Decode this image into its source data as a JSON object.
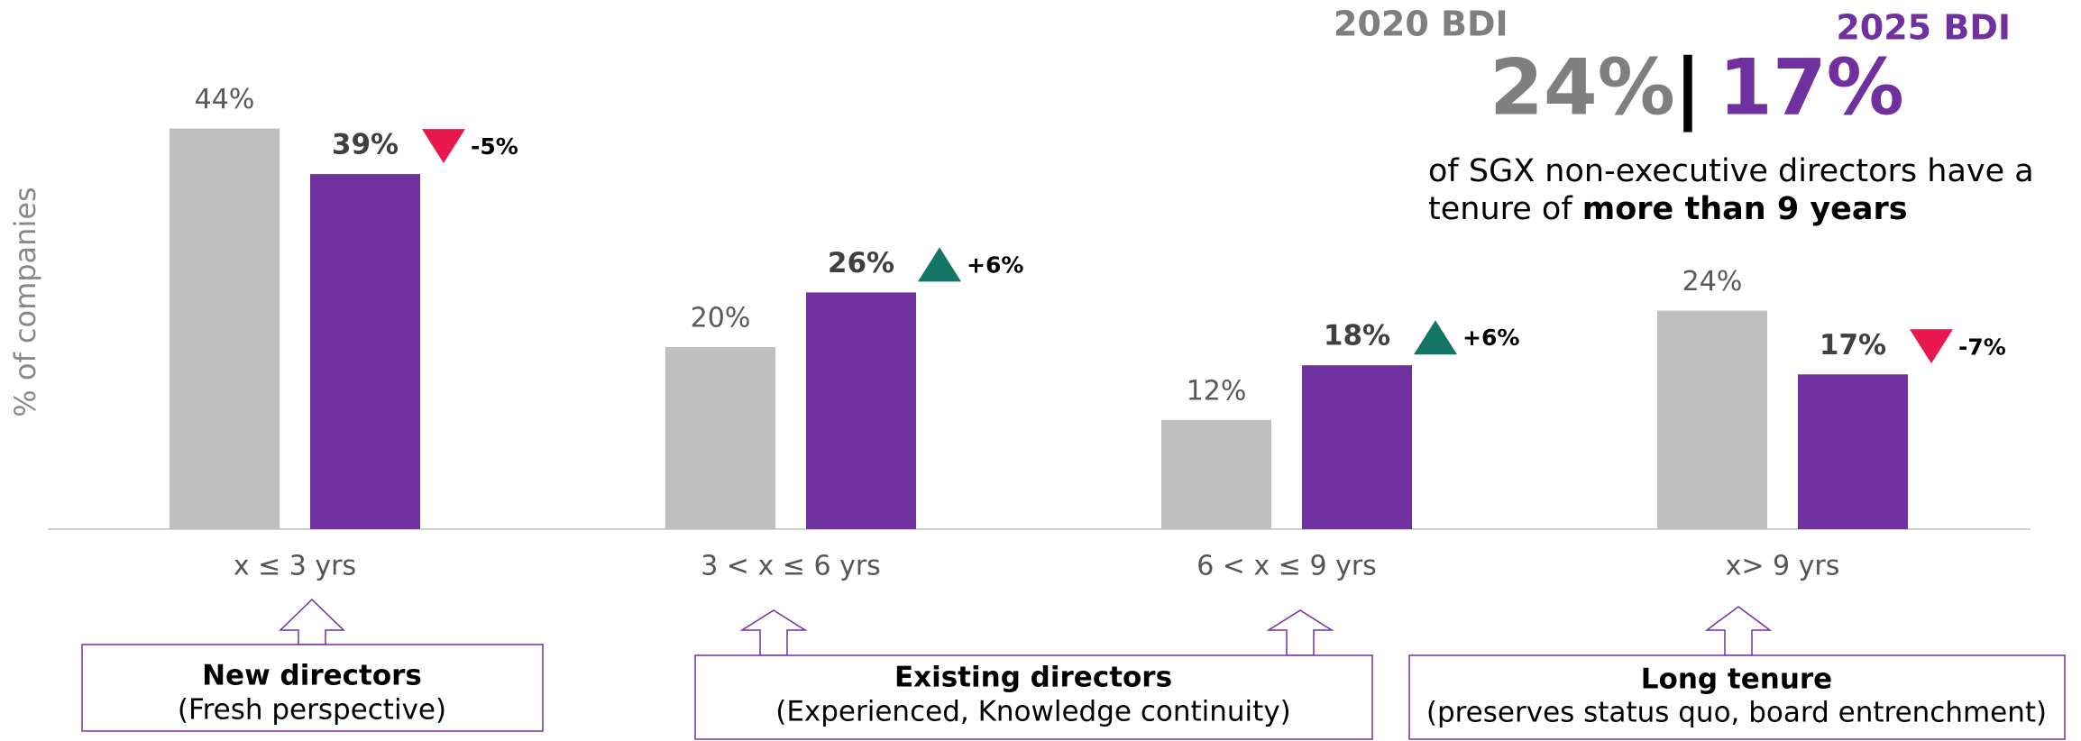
{
  "chart_data": {
    "type": "bar",
    "y_label": "% of companies",
    "categories": [
      "x ≤ 3 yrs",
      "3 < x ≤ 6 yrs",
      "6 < x ≤ 9 yrs",
      "x> 9 yrs"
    ],
    "series": [
      {
        "name": "2020 BDI",
        "color": "#bfbfbf",
        "values": [
          44,
          20,
          12,
          24
        ],
        "value_labels": [
          "44%",
          "20%",
          "12%",
          "24%"
        ]
      },
      {
        "name": "2025 BDI",
        "color": "#7030a0",
        "values": [
          39,
          26,
          18,
          17
        ],
        "value_labels": [
          "39%",
          "26%",
          "18%",
          "17%"
        ]
      }
    ],
    "changes": [
      -5,
      6,
      6,
      -7
    ],
    "change_labels": [
      "-5%",
      "+6%",
      "+6%",
      "-7%"
    ],
    "up_color": "#127566",
    "down_color": "#e8184f",
    "ylim": [
      0,
      50
    ],
    "headline": {
      "left": "24%",
      "separator": "|",
      "right": "17%",
      "text": [
        "of SGX non-executive directors have a",
        "tenure of ",
        "more than 9 years"
      ]
    },
    "boxes": [
      {
        "title": "New directors",
        "subtitle": "(Fresh perspective)"
      },
      {
        "title": "Existing directors",
        "subtitle": "(Experienced, Knowledge continuity)"
      },
      {
        "title": "Long tenure",
        "subtitle": "(preserves status quo, board entrenchment)"
      }
    ]
  }
}
